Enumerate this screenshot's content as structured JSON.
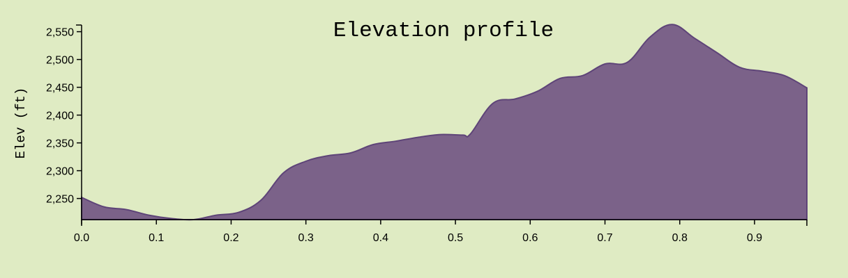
{
  "colors": {
    "background": "#dfebc3",
    "area_fill": "#7b6289",
    "area_stroke": "#5e4478",
    "axis": "#000000"
  },
  "chart_data": {
    "type": "area",
    "title": "Elevation profile",
    "xlabel": "",
    "ylabel": "Elev (ft)",
    "xlim": [
      0.0,
      0.97
    ],
    "ylim": [
      2212,
      2562
    ],
    "x_ticks": [
      0.0,
      0.1,
      0.2,
      0.3,
      0.4,
      0.5,
      0.6,
      0.7,
      0.8,
      0.9
    ],
    "x_tick_labels": [
      "0.0",
      "0.1",
      "0.2",
      "0.3",
      "0.4",
      "0.5",
      "0.6",
      "0.7",
      "0.8",
      "0.9"
    ],
    "y_ticks": [
      2250,
      2300,
      2350,
      2400,
      2450,
      2500,
      2550
    ],
    "y_tick_labels": [
      "2,250",
      "2,300",
      "2,350",
      "2,400",
      "2,450",
      "2,500",
      "2,550"
    ],
    "grid": false,
    "series": [
      {
        "x": [
          0.0,
          0.03,
          0.06,
          0.09,
          0.12,
          0.15,
          0.18,
          0.21,
          0.24,
          0.27,
          0.3,
          0.33,
          0.36,
          0.39,
          0.42,
          0.45,
          0.48,
          0.51,
          0.52,
          0.55,
          0.58,
          0.61,
          0.64,
          0.67,
          0.7,
          0.73,
          0.76,
          0.79,
          0.82,
          0.85,
          0.88,
          0.91,
          0.94,
          0.97
        ],
        "y": [
          2252,
          2235,
          2230,
          2220,
          2214,
          2212,
          2220,
          2225,
          2247,
          2296,
          2317,
          2327,
          2332,
          2347,
          2353,
          2360,
          2365,
          2364,
          2366,
          2421,
          2429,
          2443,
          2466,
          2471,
          2492,
          2495,
          2540,
          2563,
          2538,
          2512,
          2486,
          2479,
          2471,
          2449
        ]
      }
    ]
  }
}
